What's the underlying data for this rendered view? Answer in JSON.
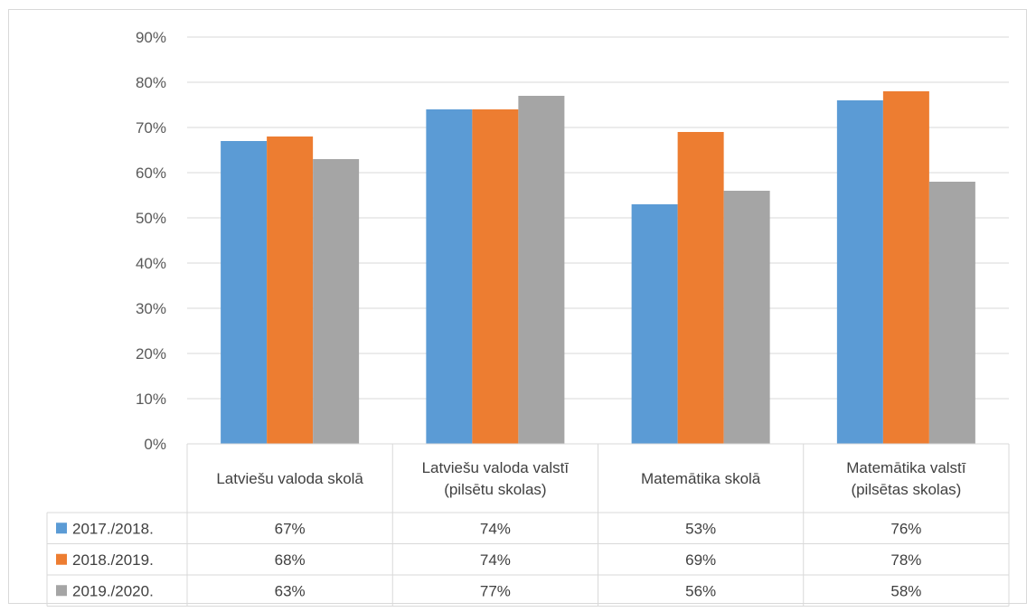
{
  "chart_data": {
    "type": "bar",
    "categories": [
      [
        "Latviešu valoda skolā"
      ],
      [
        "Latviešu valoda valstī",
        "(pilsētu skolas)"
      ],
      [
        "Matemātika skolā"
      ],
      [
        "Matemātika valstī",
        "(pilsētas skolas)"
      ]
    ],
    "series": [
      {
        "name": "2017./2018.",
        "color": "#5b9bd5",
        "values": [
          67,
          74,
          53,
          76
        ],
        "labels": [
          "67%",
          "74%",
          "53%",
          "76%"
        ]
      },
      {
        "name": "2018./2019.",
        "color": "#ed7d31",
        "values": [
          68,
          74,
          69,
          78
        ],
        "labels": [
          "68%",
          "74%",
          "69%",
          "78%"
        ]
      },
      {
        "name": "2019./2020.",
        "color": "#a5a5a5",
        "values": [
          63,
          77,
          56,
          58
        ],
        "labels": [
          "63%",
          "77%",
          "56%",
          "58%"
        ]
      }
    ],
    "y_ticks": [
      "0%",
      "10%",
      "20%",
      "30%",
      "40%",
      "50%",
      "60%",
      "70%",
      "80%",
      "90%"
    ],
    "ylim": [
      0,
      90
    ],
    "grid": true,
    "legend": "data-table"
  }
}
